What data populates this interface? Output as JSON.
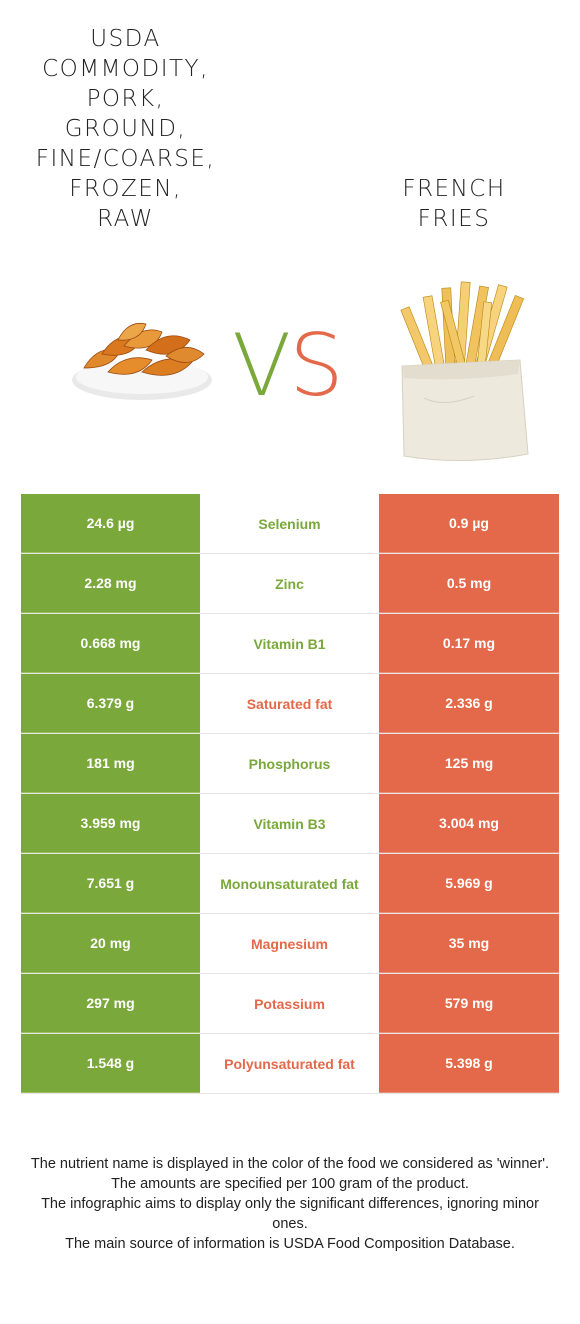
{
  "foods": {
    "left": {
      "name": "USDA COMMODITY, PORK, GROUND, FINE/COARSE, FROZEN, RAW"
    },
    "right": {
      "name": "FRENCH FRIES"
    }
  },
  "vs": {
    "v": "V",
    "s": "S"
  },
  "colors": {
    "left": "#7aa83a",
    "right": "#e4694a"
  },
  "rows": [
    {
      "left": "24.6 µg",
      "nutrient": "Selenium",
      "right": "0.9 µg",
      "winner": "left"
    },
    {
      "left": "2.28 mg",
      "nutrient": "Zinc",
      "right": "0.5 mg",
      "winner": "left"
    },
    {
      "left": "0.668 mg",
      "nutrient": "Vitamin B1",
      "right": "0.17 mg",
      "winner": "left"
    },
    {
      "left": "6.379 g",
      "nutrient": "Saturated fat",
      "right": "2.336 g",
      "winner": "right"
    },
    {
      "left": "181 mg",
      "nutrient": "Phosphorus",
      "right": "125 mg",
      "winner": "left"
    },
    {
      "left": "3.959 mg",
      "nutrient": "Vitamin B3",
      "right": "3.004 mg",
      "winner": "left"
    },
    {
      "left": "7.651 g",
      "nutrient": "Monounsaturated fat",
      "right": "5.969 g",
      "winner": "left"
    },
    {
      "left": "20 mg",
      "nutrient": "Magnesium",
      "right": "35 mg",
      "winner": "right"
    },
    {
      "left": "297 mg",
      "nutrient": "Potassium",
      "right": "579 mg",
      "winner": "right"
    },
    {
      "left": "1.548 g",
      "nutrient": "Polyunsaturated fat",
      "right": "5.398 g",
      "winner": "right"
    }
  ],
  "footnotes": [
    "The nutrient name is displayed in the color of the food we considered as 'winner'.",
    "The amounts are specified per 100 gram of the product.",
    "The infographic aims to display only the significant differences, ignoring minor ones.",
    "The main source of information is USDA Food Composition Database."
  ]
}
